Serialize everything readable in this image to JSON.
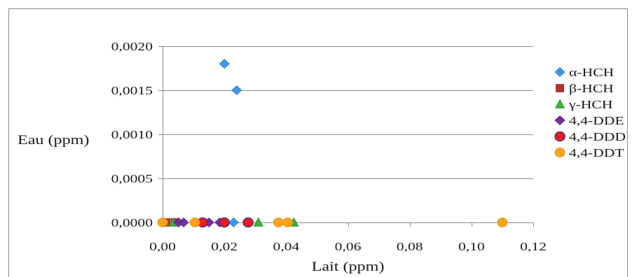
{
  "chart_data": {
    "type": "scatter",
    "xlabel": "Lait (ppm)",
    "ylabel": "Eau (ppm)",
    "xlim": [
      0,
      0.12
    ],
    "ylim": [
      0,
      0.002
    ],
    "xticks": {
      "values": [
        0,
        0.02,
        0.04,
        0.06,
        0.08,
        0.1,
        0.12
      ],
      "labels": [
        "0,00",
        "0,02",
        "0,04",
        "0,06",
        "0,08",
        "0,10",
        "0,12"
      ]
    },
    "yticks": {
      "values": [
        0,
        0.0005,
        0.001,
        0.0015,
        0.002
      ],
      "labels": [
        "0,0000",
        "0,0005",
        "0,0010",
        "0,0015",
        "0,0020"
      ]
    },
    "grid": {
      "horizontal": true,
      "vertical": false
    },
    "legend": "right",
    "series": [
      {
        "name": "α-HCH",
        "marker": "diamond",
        "color": "#3d9ae8",
        "edge": "#2f7fc9",
        "x": [
          0.0007,
          0.023,
          0.02,
          0.024
        ],
        "y": [
          0,
          0,
          0.0018,
          0.0015
        ]
      },
      {
        "name": "β-HCH",
        "marker": "square",
        "color": "#b0352e",
        "edge": "#8e2a24",
        "x": [
          0.0012,
          0.004
        ],
        "y": [
          0,
          0
        ]
      },
      {
        "name": "γ-HCH",
        "marker": "triangle",
        "color": "#3cae3c",
        "edge": "#2e8f2e",
        "x": [
          0.0035,
          0.031,
          0.0425
        ],
        "y": [
          0,
          0,
          0
        ]
      },
      {
        "name": "4,4-DDE",
        "marker": "diamond",
        "color": "#7030a0",
        "edge": "#5a2682",
        "x": [
          0.0052,
          0.0068,
          0.015,
          0.0185
        ],
        "y": [
          0,
          0,
          0,
          0
        ]
      },
      {
        "name": "4,4-DDD",
        "marker": "circle",
        "color": "#f01a1a",
        "edge": "#4b2e83",
        "x": [
          0.013,
          0.02,
          0.0277
        ],
        "y": [
          0,
          0,
          0
        ]
      },
      {
        "name": "4,4-DDT",
        "marker": "circle",
        "color": "#f9a31b",
        "edge": "#e08e0b",
        "x": [
          0.0,
          0.0105,
          0.0375,
          0.0405,
          0.11
        ],
        "y": [
          0,
          0,
          0,
          0,
          0
        ]
      }
    ]
  }
}
